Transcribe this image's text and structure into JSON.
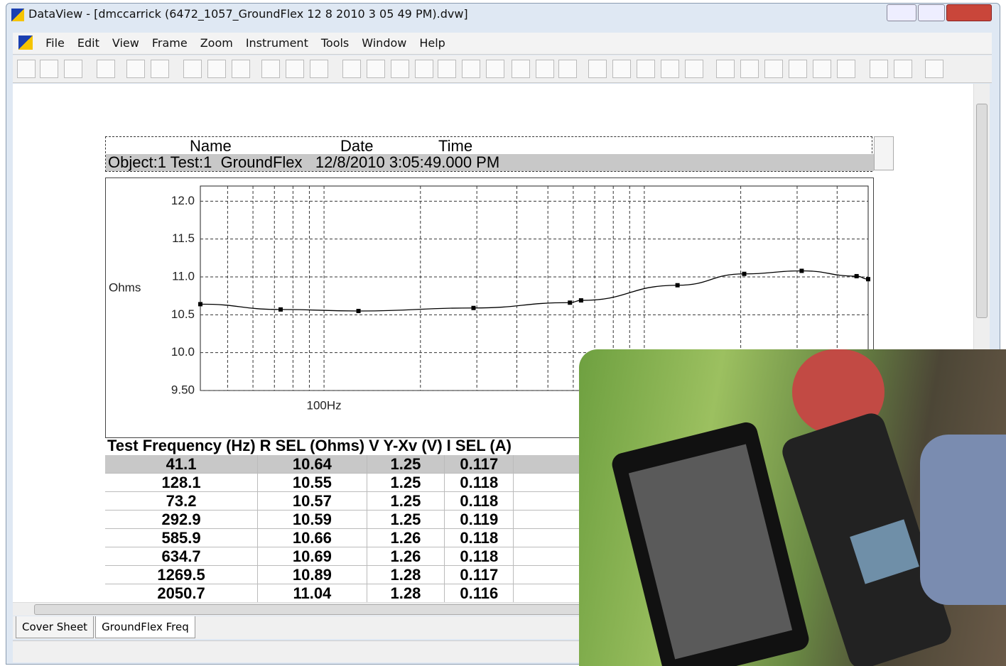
{
  "window": {
    "title": "DataView - [dmccarrick (6472_1057_GroundFlex 12 8 2010 3 05 49 PM).dvw]"
  },
  "menu": [
    "File",
    "Edit",
    "View",
    "Frame",
    "Zoom",
    "Instrument",
    "Tools",
    "Window",
    "Help"
  ],
  "header_table": {
    "columns": [
      "Name",
      "Date",
      "Time"
    ],
    "row": "Object:1 Test:1  GroundFlex   12/8/2010 3:05:49.000 PM"
  },
  "chart_data": {
    "type": "line",
    "y_label": "Ohms",
    "log_x": true,
    "grid": true,
    "color": "#000000",
    "x": [
      41.1,
      73.2,
      128.1,
      292.9,
      585.9,
      634.7,
      1269.5,
      2050.7,
      3100,
      4600,
      5000
    ],
    "values": [
      10.64,
      10.57,
      10.55,
      10.59,
      10.66,
      10.69,
      10.89,
      11.04,
      11.08,
      11.01,
      10.97
    ],
    "xlim": [
      41.1,
      5000
    ],
    "xticks": [
      {
        "value": 100,
        "label": "100Hz"
      }
    ],
    "x_minor_ticks": [
      50,
      60,
      70,
      80,
      90,
      200,
      300,
      400,
      500,
      600,
      700,
      800,
      900,
      1000,
      2000,
      3000,
      4000
    ],
    "ylim": [
      9.5,
      12.2
    ],
    "yticks": [
      {
        "value": 9.5,
        "label": "9.50"
      },
      {
        "value": 10,
        "label": "10.0"
      },
      {
        "value": 10.5,
        "label": "10.5"
      },
      {
        "value": 11,
        "label": "11.0"
      },
      {
        "value": 11.5,
        "label": "11.5"
      },
      {
        "value": 12,
        "label": "12.0"
      }
    ]
  },
  "table": {
    "columns": [
      "Test Frequency (Hz)",
      "R SEL (Ohms)",
      "V Y-Xv (V)",
      "I SEL (A)"
    ],
    "rows": [
      [
        41.1,
        10.64,
        1.25,
        0.117
      ],
      [
        128.1,
        10.55,
        1.25,
        0.118
      ],
      [
        73.2,
        10.57,
        1.25,
        0.118
      ],
      [
        292.9,
        10.59,
        1.25,
        0.119
      ],
      [
        585.9,
        10.66,
        1.26,
        0.118
      ],
      [
        634.7,
        10.69,
        1.26,
        0.118
      ],
      [
        1269.5,
        10.89,
        1.28,
        0.117
      ],
      [
        2050.7,
        11.04,
        1.28,
        0.116
      ]
    ]
  },
  "tabs": [
    "Cover Sheet",
    "GroundFlex Freq"
  ]
}
